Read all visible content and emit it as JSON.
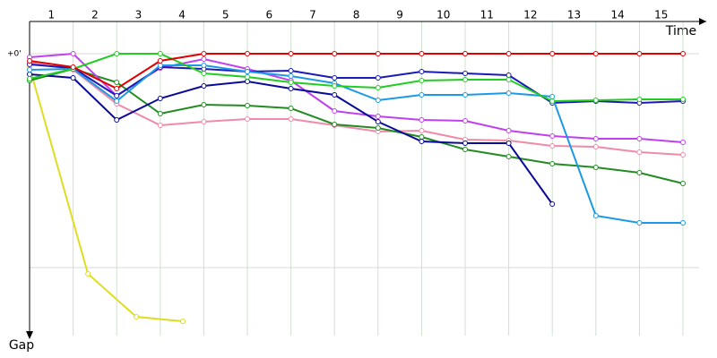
{
  "chart_data": {
    "type": "line",
    "x_label": "Time",
    "y_label": "Gap",
    "x": [
      0,
      1,
      2,
      3,
      4,
      5,
      6,
      7,
      8,
      9,
      10,
      11,
      12,
      13,
      14,
      15
    ],
    "xlim": [
      0,
      15.37
    ],
    "xticks": [
      {
        "value": 0.5,
        "label": "1"
      },
      {
        "value": 1.5,
        "label": "2"
      },
      {
        "value": 2.5,
        "label": "3"
      },
      {
        "value": 3.5,
        "label": "4"
      },
      {
        "value": 4.5,
        "label": "5"
      },
      {
        "value": 5.5,
        "label": "6"
      },
      {
        "value": 6.5,
        "label": "7"
      },
      {
        "value": 7.5,
        "label": "8"
      },
      {
        "value": 8.5,
        "label": "9"
      },
      {
        "value": 9.5,
        "label": "10"
      },
      {
        "value": 10.5,
        "label": "11"
      },
      {
        "value": 11.5,
        "label": "12"
      },
      {
        "value": 12.5,
        "label": "13"
      },
      {
        "value": 13.5,
        "label": "14"
      },
      {
        "value": 14.5,
        "label": "15"
      }
    ],
    "ylim": [
      -36,
      315
    ],
    "yticks": [
      {
        "value": 0,
        "label": "+0'"
      },
      {
        "value": 239,
        "label": null
      }
    ],
    "grid": true,
    "series": [
      {
        "color": "#dddd22",
        "x": [
          0,
          1.34,
          2.45,
          3.52
        ],
        "values": [
          15,
          246,
          294,
          299
        ]
      },
      {
        "color": "#f08aa8",
        "values": [
          10,
          18,
          56,
          80,
          76,
          73,
          73,
          80,
          87,
          86,
          96,
          97,
          103,
          104,
          110,
          113
        ]
      },
      {
        "color": "#228b22",
        "values": [
          30,
          17,
          32,
          67,
          57,
          58,
          61,
          79,
          83,
          93,
          107,
          115,
          123,
          127,
          133,
          145
        ]
      },
      {
        "color": "#c040f0",
        "values": [
          4,
          0,
          47,
          16,
          6,
          17,
          30,
          64,
          70,
          74,
          75,
          86,
          92,
          95,
          95,
          99
        ]
      },
      {
        "color": "#0a0a99",
        "values": [
          23,
          27,
          74,
          50,
          36,
          31,
          39,
          46,
          76,
          98,
          100,
          100,
          168,
          null,
          null,
          null
        ]
      },
      {
        "color": "#1a1ab8",
        "values": [
          12,
          16,
          47,
          15,
          17,
          20,
          19,
          27,
          27,
          20,
          22,
          24,
          55,
          53,
          55,
          53
        ]
      },
      {
        "color": "#1a9ae6",
        "values": [
          18,
          17,
          53,
          13,
          13,
          20,
          25,
          33,
          52,
          46,
          46,
          44,
          48,
          181,
          189,
          189
        ]
      },
      {
        "color": "#22cc22",
        "values": [
          28,
          17,
          0,
          0,
          22,
          26,
          32,
          36,
          38,
          30,
          29,
          29,
          53,
          52,
          51,
          51
        ]
      },
      {
        "color": "#e00000",
        "values": [
          8,
          15,
          39,
          8,
          0,
          0,
          0,
          0,
          0,
          0,
          0,
          0,
          0,
          0,
          0,
          0
        ]
      }
    ]
  }
}
